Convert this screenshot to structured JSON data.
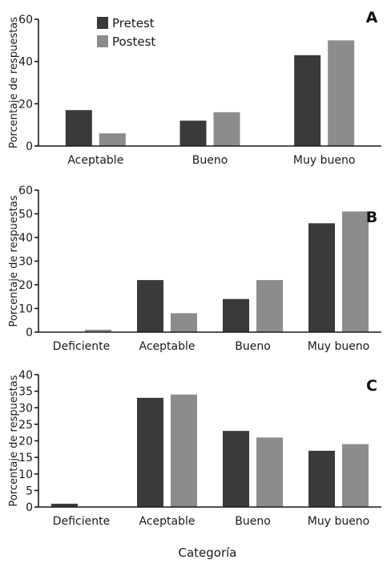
{
  "figure": {
    "xlabel": "Categoría",
    "ylabel": "Porcentaje de respuestas"
  },
  "legend": {
    "placement": "top-left",
    "items": [
      {
        "label": "Pretest",
        "color": "#3a3a3a"
      },
      {
        "label": "Postest",
        "color": "#8c8c8c"
      }
    ]
  },
  "chart_data": [
    {
      "type": "bar",
      "panel_label": "A",
      "categories": [
        "Aceptable",
        "Bueno",
        "Muy bueno"
      ],
      "series": [
        {
          "name": "Pretest",
          "values": [
            17,
            12,
            43
          ]
        },
        {
          "name": "Postest",
          "values": [
            6,
            16,
            50
          ]
        }
      ],
      "ylabel": "Porcentaje de respuestas",
      "ylim": [
        0,
        60
      ],
      "yticks": [
        0,
        20,
        40,
        60
      ]
    },
    {
      "type": "bar",
      "panel_label": "B",
      "categories": [
        "Deficiente",
        "Aceptable",
        "Bueno",
        "Muy bueno"
      ],
      "series": [
        {
          "name": "Pretest",
          "values": [
            0,
            22,
            14,
            46
          ]
        },
        {
          "name": "Postest",
          "values": [
            1,
            8,
            22,
            51
          ]
        }
      ],
      "ylabel": "Porcentaje de respuestas",
      "ylim": [
        0,
        60
      ],
      "yticks": [
        0,
        10,
        20,
        30,
        40,
        50,
        60
      ]
    },
    {
      "type": "bar",
      "panel_label": "C",
      "categories": [
        "Deficiente",
        "Aceptable",
        "Bueno",
        "Muy bueno"
      ],
      "series": [
        {
          "name": "Pretest",
          "values": [
            1,
            33,
            23,
            17
          ]
        },
        {
          "name": "Postest",
          "values": [
            0,
            34,
            21,
            19
          ]
        }
      ],
      "ylabel": "Porcentaje de respuestas",
      "xlabel": "Categoría",
      "ylim": [
        0,
        40
      ],
      "yticks": [
        0,
        5,
        10,
        15,
        20,
        25,
        30,
        35,
        40
      ]
    }
  ]
}
